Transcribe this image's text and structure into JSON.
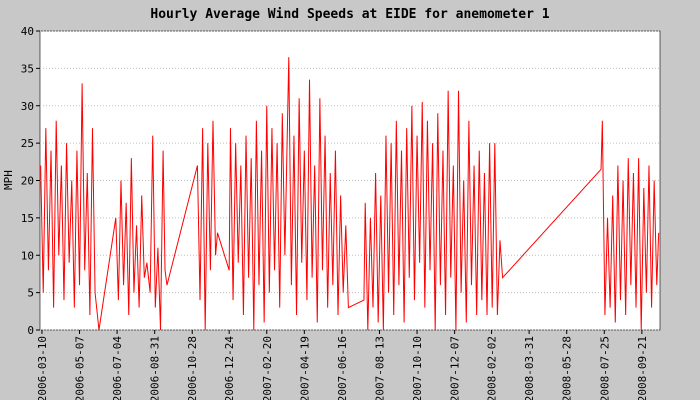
{
  "chart_data": {
    "type": "line",
    "title": "Hourly Average Wind Speeds at EIDE for anemometer 1",
    "ylabel": "MPH",
    "xlim": [
      "2006-03-07",
      "2008-10-19"
    ],
    "ylim": [
      0,
      40
    ],
    "yticks": [
      0,
      5,
      10,
      15,
      20,
      25,
      30,
      35,
      40
    ],
    "grid": true,
    "xticks": [
      "2006-03-10",
      "2006-05-07",
      "2006-07-04",
      "2006-08-31",
      "2006-10-28",
      "2006-12-24",
      "2007-02-20",
      "2007-04-19",
      "2007-06-16",
      "2007-08-13",
      "2007-10-10",
      "2007-12-07",
      "2008-02-02",
      "2008-03-31",
      "2008-05-28",
      "2008-07-25",
      "2008-09-21"
    ],
    "series": [
      {
        "name": "anemometer 1",
        "color": "#ff0000",
        "x": [
          "2006-03-08",
          "2006-03-12",
          "2006-03-16",
          "2006-03-20",
          "2006-03-24",
          "2006-03-28",
          "2006-04-01",
          "2006-04-05",
          "2006-04-09",
          "2006-04-13",
          "2006-04-17",
          "2006-04-21",
          "2006-04-25",
          "2006-04-29",
          "2006-05-03",
          "2006-05-07",
          "2006-05-11",
          "2006-05-15",
          "2006-05-19",
          "2006-05-23",
          "2006-05-27",
          "2006-05-31",
          "2006-06-06",
          "2006-07-02",
          "2006-07-06",
          "2006-07-10",
          "2006-07-14",
          "2006-07-18",
          "2006-07-22",
          "2006-07-26",
          "2006-07-30",
          "2006-08-03",
          "2006-08-07",
          "2006-08-11",
          "2006-08-15",
          "2006-08-19",
          "2006-08-24",
          "2006-08-28",
          "2006-09-01",
          "2006-09-05",
          "2006-09-09",
          "2006-09-13",
          "2006-09-16",
          "2006-09-19",
          "2006-11-05",
          "2006-11-09",
          "2006-11-13",
          "2006-11-17",
          "2006-11-21",
          "2006-11-25",
          "2006-11-29",
          "2006-12-03",
          "2006-12-06",
          "2006-12-24",
          "2006-12-26",
          "2006-12-30",
          "2007-01-03",
          "2007-01-07",
          "2007-01-11",
          "2007-01-15",
          "2007-01-19",
          "2007-01-23",
          "2007-01-27",
          "2007-01-31",
          "2007-02-04",
          "2007-02-08",
          "2007-02-12",
          "2007-02-16",
          "2007-02-20",
          "2007-02-24",
          "2007-02-28",
          "2007-03-04",
          "2007-03-08",
          "2007-03-12",
          "2007-03-16",
          "2007-03-20",
          "2007-03-26",
          "2007-03-30",
          "2007-04-03",
          "2007-04-07",
          "2007-04-11",
          "2007-04-15",
          "2007-04-19",
          "2007-04-23",
          "2007-04-27",
          "2007-05-01",
          "2007-05-05",
          "2007-05-09",
          "2007-05-13",
          "2007-05-17",
          "2007-05-21",
          "2007-05-25",
          "2007-05-29",
          "2007-06-02",
          "2007-06-06",
          "2007-06-10",
          "2007-06-14",
          "2007-06-18",
          "2007-06-22",
          "2007-06-26",
          "2007-07-20",
          "2007-07-22",
          "2007-07-26",
          "2007-07-30",
          "2007-08-03",
          "2007-08-07",
          "2007-08-11",
          "2007-08-15",
          "2007-08-19",
          "2007-08-23",
          "2007-08-27",
          "2007-08-31",
          "2007-09-04",
          "2007-09-08",
          "2007-09-12",
          "2007-09-16",
          "2007-09-20",
          "2007-09-24",
          "2007-09-28",
          "2007-10-02",
          "2007-10-06",
          "2007-10-10",
          "2007-10-14",
          "2007-10-18",
          "2007-10-22",
          "2007-10-26",
          "2007-10-30",
          "2007-11-03",
          "2007-11-07",
          "2007-11-11",
          "2007-11-15",
          "2007-11-19",
          "2007-11-23",
          "2007-11-27",
          "2007-12-01",
          "2007-12-05",
          "2007-12-09",
          "2007-12-13",
          "2007-12-17",
          "2007-12-21",
          "2007-12-25",
          "2007-12-29",
          "2008-01-02",
          "2008-01-06",
          "2008-01-10",
          "2008-01-14",
          "2008-01-18",
          "2008-01-22",
          "2008-01-26",
          "2008-01-30",
          "2008-02-03",
          "2008-02-07",
          "2008-02-11",
          "2008-02-15",
          "2008-02-19",
          "2008-07-20",
          "2008-07-22",
          "2008-07-26",
          "2008-07-30",
          "2008-08-03",
          "2008-08-07",
          "2008-08-11",
          "2008-08-15",
          "2008-08-19",
          "2008-08-23",
          "2008-08-27",
          "2008-08-31",
          "2008-09-04",
          "2008-09-08",
          "2008-09-12",
          "2008-09-16",
          "2008-09-20",
          "2008-09-24",
          "2008-09-28",
          "2008-10-02",
          "2008-10-06",
          "2008-10-10",
          "2008-10-14",
          "2008-10-17"
        ],
        "values": [
          22,
          5,
          27,
          8,
          24,
          3,
          28,
          10,
          22,
          4,
          25,
          9,
          20,
          3,
          24,
          6,
          33,
          8,
          21,
          2,
          27,
          5,
          0,
          15,
          4,
          20,
          6,
          17,
          2,
          23,
          5,
          14,
          3,
          18,
          7,
          9,
          5,
          26,
          3,
          11,
          0,
          24,
          8,
          6,
          22,
          4,
          27,
          0,
          25,
          8,
          28,
          10,
          13,
          8,
          27,
          4,
          25,
          9,
          22,
          2,
          26,
          7,
          23,
          0,
          28,
          6,
          24,
          1,
          30,
          5,
          27,
          8,
          25,
          3,
          29,
          10,
          36.5,
          6,
          26,
          2,
          31,
          9,
          24,
          4,
          33.5,
          7,
          22,
          1,
          31,
          8,
          26,
          3,
          21,
          6,
          24,
          2,
          18,
          5,
          14,
          3,
          4,
          17,
          0,
          15,
          3,
          21,
          1,
          18,
          0,
          26,
          5,
          25,
          2,
          28,
          6,
          24,
          1,
          27,
          7,
          30,
          4,
          26,
          9,
          30.5,
          3,
          28,
          8,
          25,
          0,
          29,
          6,
          24,
          2,
          32,
          7,
          22,
          0,
          32,
          5,
          20,
          1,
          28,
          6,
          22,
          2,
          24,
          4,
          21,
          2,
          25,
          3,
          25,
          2,
          12,
          7,
          21.5,
          28,
          2,
          15,
          3,
          18,
          1,
          22,
          4,
          20,
          2,
          23,
          6,
          21,
          3,
          23,
          0,
          19,
          5,
          22,
          3,
          20,
          6,
          13
        ]
      }
    ]
  }
}
